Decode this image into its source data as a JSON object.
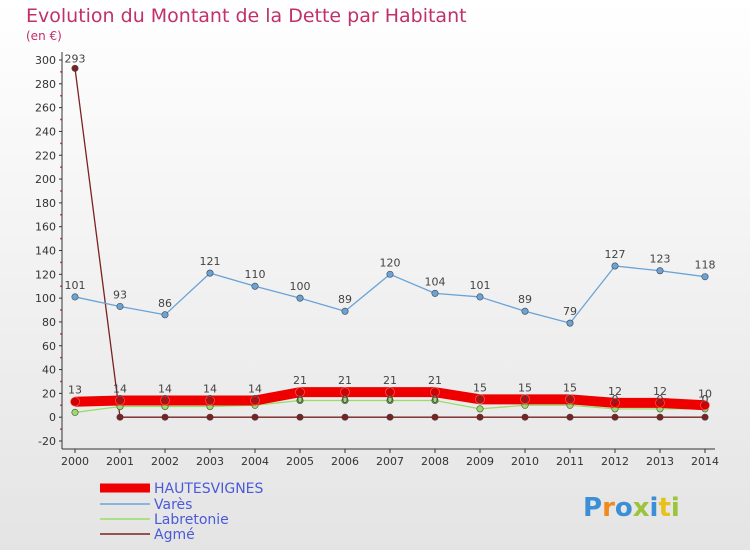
{
  "chart_data": {
    "type": "line",
    "title": "Evolution du Montant de la Dette par Habitant",
    "subtitle": "(en €)",
    "xlabel": "",
    "ylabel": "",
    "categories": [
      "2000",
      "2001",
      "2002",
      "2003",
      "2004",
      "2005",
      "2006",
      "2007",
      "2008",
      "2009",
      "2010",
      "2011",
      "2012",
      "2013",
      "2014"
    ],
    "ylim": [
      -20,
      300
    ],
    "yticks": [
      -20,
      0,
      20,
      40,
      60,
      80,
      100,
      120,
      140,
      160,
      180,
      200,
      220,
      240,
      260,
      280,
      300
    ],
    "grid": false,
    "legend_placement": "bottom-left",
    "series": [
      {
        "name": "HAUTESVIGNES",
        "color": "#ee0000",
        "values": [
          13,
          14,
          14,
          14,
          14,
          21,
          21,
          21,
          21,
          15,
          15,
          15,
          12,
          12,
          10
        ],
        "labels": [
          "13",
          "14",
          "14",
          "14",
          "14",
          "21",
          "21",
          "21",
          "21",
          "15",
          "15",
          "15",
          "12",
          "12",
          "10"
        ]
      },
      {
        "name": "Varès",
        "color": "#6aa3d8",
        "values": [
          101,
          93,
          86,
          121,
          110,
          100,
          89,
          120,
          104,
          101,
          89,
          79,
          127,
          123,
          118
        ],
        "labels": [
          "101",
          "93",
          "86",
          "121",
          "110",
          "100",
          "89",
          "120",
          "104",
          "101",
          "89",
          "79",
          "127",
          "123",
          "118"
        ]
      },
      {
        "name": "Labretonie",
        "color": "#99dd66",
        "values": [
          4,
          9,
          9,
          9,
          10,
          14,
          14,
          14,
          14,
          7,
          10,
          10,
          7,
          7,
          7
        ],
        "labels": [
          "",
          "",
          "",
          "",
          "",
          "",
          "",
          "",
          "",
          "",
          "",
          "",
          "",
          "",
          ""
        ]
      },
      {
        "name": "Agmé",
        "color": "#7a2222",
        "values": [
          293,
          0,
          0,
          0,
          0,
          0,
          0,
          0,
          0,
          0,
          0,
          0,
          0,
          0,
          0
        ],
        "labels": [
          "293",
          "0",
          "0",
          "0",
          "0",
          "0",
          "0",
          "0",
          "0",
          "0",
          "0",
          "0",
          "0",
          "0",
          "0"
        ]
      }
    ]
  },
  "brand": {
    "text": "Proxiti",
    "colors": [
      "#3a8fd6",
      "#f08a1c",
      "#3a8fd6",
      "#9ac43a",
      "#3a8fd6",
      "#e8c21a",
      "#9ac43a"
    ]
  },
  "colors": {
    "title": "#c0306a",
    "axis": "#333333",
    "plot_bg_top": "#ffffff",
    "plot_bg_bottom": "#e6e6e6"
  }
}
